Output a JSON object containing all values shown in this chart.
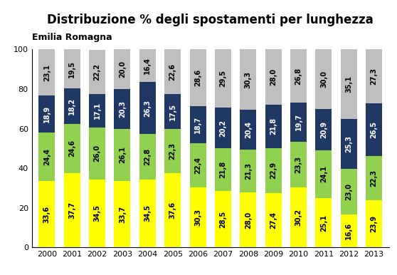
{
  "title": "Distribuzione % degli spostamenti per lunghezza",
  "subtitle": "Emilia Romagna",
  "years": [
    2000,
    2001,
    2002,
    2003,
    2004,
    2005,
    2006,
    2007,
    2008,
    2009,
    2010,
    2011,
    2012,
    2013
  ],
  "series": {
    "yellow": [
      33.6,
      37.7,
      34.5,
      33.7,
      34.5,
      37.6,
      30.3,
      28.5,
      28.0,
      27.4,
      30.2,
      25.1,
      16.6,
      23.9
    ],
    "light_green": [
      24.4,
      24.6,
      26.0,
      26.1,
      22.8,
      22.3,
      22.4,
      21.8,
      21.3,
      22.9,
      23.3,
      24.1,
      23.0,
      22.3
    ],
    "dark_blue": [
      18.9,
      18.2,
      17.1,
      20.3,
      26.3,
      17.5,
      18.7,
      20.2,
      20.4,
      21.8,
      19.7,
      20.9,
      25.3,
      26.5
    ],
    "gray": [
      23.1,
      19.5,
      22.2,
      20.0,
      16.4,
      22.6,
      28.6,
      29.5,
      30.3,
      28.0,
      26.8,
      30.0,
      35.1,
      27.3
    ]
  },
  "colors": {
    "yellow": "#FFFF00",
    "light_green": "#92D050",
    "dark_blue": "#1F3864",
    "gray": "#BFBFBF"
  },
  "ylim": [
    0,
    100
  ],
  "title_fontsize": 12,
  "subtitle_fontsize": 9,
  "bar_width": 0.65,
  "label_fontsize": 7.0
}
